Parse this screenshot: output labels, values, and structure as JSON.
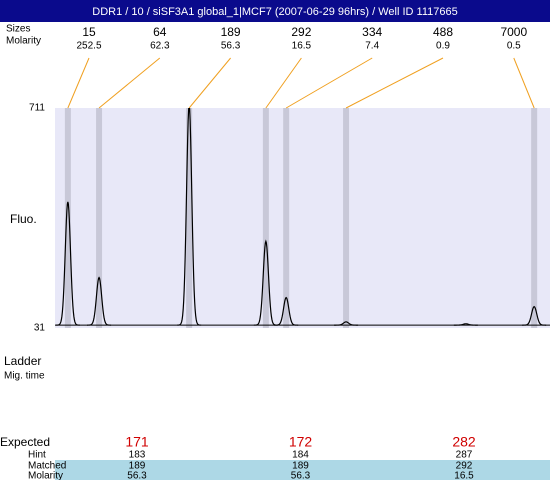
{
  "title": "DDR1 / 10 / siSF3A1 global_1|MCF7 (2007-06-29 96hrs) / Well ID 1117665",
  "ladder": {
    "size_label": "Sizes",
    "molarity_label": "Molarity",
    "sizes": [
      15,
      64,
      189,
      292,
      334,
      488,
      7000
    ],
    "molarities": [
      252.5,
      62.3,
      56.3,
      16.5,
      7.4,
      0.9,
      0.5
    ]
  },
  "chart_data": {
    "type": "electropherogram",
    "y_label": "Fluo.",
    "ylim": [
      31,
      711
    ],
    "yticks": [
      31,
      711
    ],
    "xlim": [
      0,
      100
    ],
    "band_positions": [
      2.6,
      8.9,
      27.1,
      42.6,
      46.7,
      58.8,
      96.8
    ],
    "peaks": {
      "x": [
        2.6,
        8.9,
        27.1,
        42.6,
        46.7,
        58.8,
        83.0,
        96.8
      ],
      "y": [
        421,
        187,
        720,
        299,
        125,
        50,
        44,
        97
      ]
    },
    "baseline": 40,
    "band_color": "#c8c8d8",
    "line_color": "#000000",
    "plot_color": "#e8e8f8",
    "connector_color": "#f0a020"
  },
  "lower": {
    "ladder_label": "Ladder",
    "mig_label": "Mig. time"
  },
  "results": {
    "row_labels": [
      "Expected",
      "Hint",
      "Matched",
      "Molarity"
    ],
    "rows": [
      [
        171,
        172,
        282
      ],
      [
        183,
        184,
        287
      ],
      [
        189,
        189,
        292
      ],
      [
        56.3,
        56.3,
        16.5
      ]
    ]
  }
}
